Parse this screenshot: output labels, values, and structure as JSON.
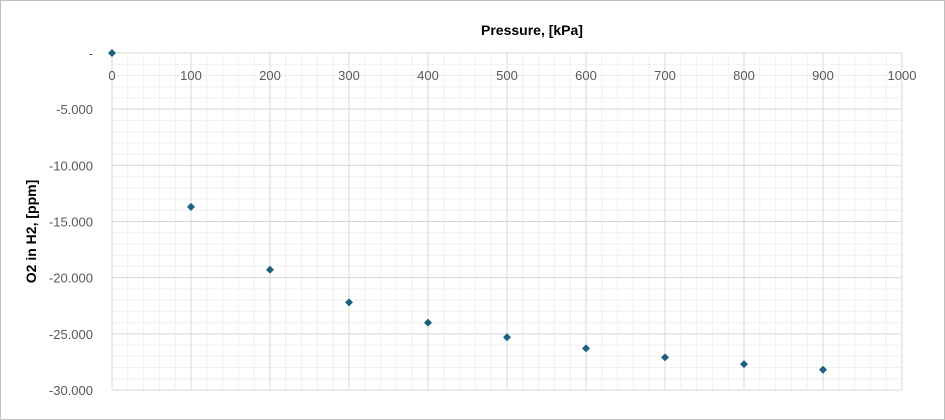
{
  "chart_data": {
    "type": "scatter",
    "title": "",
    "xlabel": "Pressure, [kPa]",
    "ylabel": "O2 in H2, [ppm]",
    "x_axis_position": "top",
    "xlim": [
      0,
      1000
    ],
    "ylim": [
      -30,
      0
    ],
    "x_ticks": [
      0,
      100,
      200,
      300,
      400,
      500,
      600,
      700,
      800,
      900,
      1000
    ],
    "x_tick_labels": [
      "0",
      "100",
      "200",
      "300",
      "400",
      "500",
      "600",
      "700",
      "800",
      "900",
      "1000"
    ],
    "y_ticks": [
      0,
      -5,
      -10,
      -15,
      -20,
      -25,
      -30
    ],
    "y_tick_labels": [
      "-",
      "-5.000",
      "-10.000",
      "-15.000",
      "-20.000",
      "-25.000",
      "-30.000"
    ],
    "grid": true,
    "minor_grid": true,
    "legend": "none",
    "marker": "diamond",
    "series": [
      {
        "color": "#1f5f7f",
        "points": [
          {
            "x": 0,
            "y": 0
          },
          {
            "x": 100,
            "y": -13.7
          },
          {
            "x": 200,
            "y": -19.3
          },
          {
            "x": 300,
            "y": -22.2
          },
          {
            "x": 400,
            "y": -24.0
          },
          {
            "x": 500,
            "y": -25.3
          },
          {
            "x": 600,
            "y": -26.3
          },
          {
            "x": 700,
            "y": -27.1
          },
          {
            "x": 800,
            "y": -27.7
          },
          {
            "x": 900,
            "y": -28.2
          }
        ]
      }
    ]
  }
}
